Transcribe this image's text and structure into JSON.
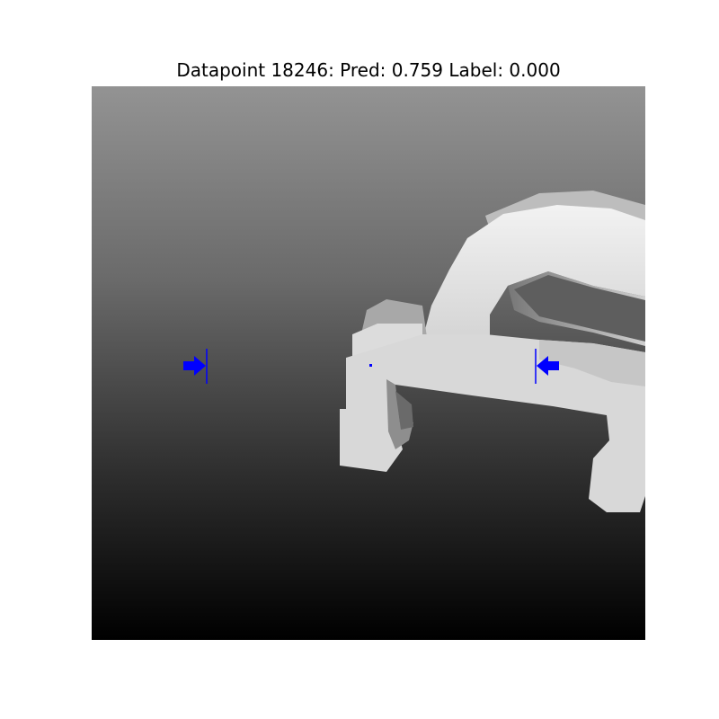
{
  "figure": {
    "title": "Datapoint 18246: Pred: 0.759 Label: 0.000"
  },
  "depth_image": {
    "background": "vertical gradient, light gray at top to black at bottom",
    "object": "bright white gripper/claw shaped object on right side"
  },
  "markers": {
    "color": "#0000ff",
    "left": "arrow-pointing-right-icon",
    "right": "arrow-pointing-left-icon",
    "center": "dot-icon"
  }
}
